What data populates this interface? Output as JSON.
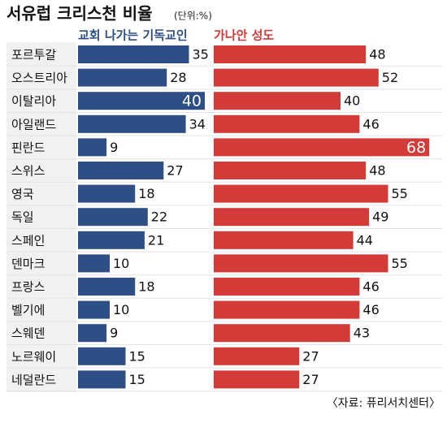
{
  "chart_data": {
    "type": "paired-bar",
    "title": "서유럽 크리스천 비율",
    "unit": "(단위:%)",
    "source": "〈자료: 퓨리서치센터〉",
    "categories": [
      "포르투갈",
      "오스트리아",
      "이탈리아",
      "아일랜드",
      "핀란드",
      "스위스",
      "영국",
      "독일",
      "스페인",
      "덴마크",
      "프랑스",
      "벨기에",
      "스웨덴",
      "노르웨이",
      "네덜란드"
    ],
    "series": [
      {
        "name": "교회 나가는 기독교인",
        "color": "#2e4f86",
        "values": [
          35,
          28,
          40,
          34,
          9,
          27,
          18,
          22,
          21,
          10,
          18,
          10,
          9,
          15,
          15
        ]
      },
      {
        "name": "가나안 성도",
        "color": "#d23b37",
        "values": [
          48,
          52,
          40,
          46,
          68,
          48,
          55,
          49,
          44,
          55,
          46,
          46,
          43,
          27,
          27
        ]
      }
    ]
  }
}
